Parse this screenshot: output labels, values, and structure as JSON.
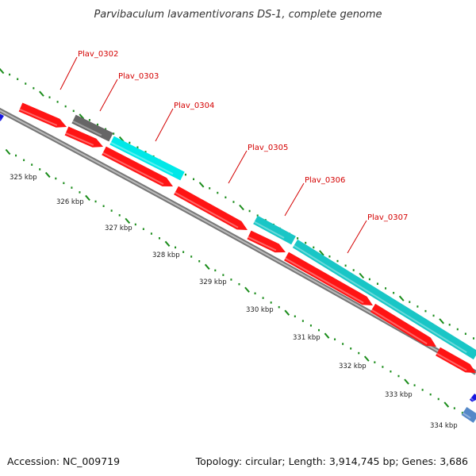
{
  "title": "Parvibaculum lavamentivorans DS-1, complete genome",
  "footer": {
    "accession": "Accession: NC_009719",
    "summary": "Topology: circular; Length: 3,914,745 bp; Genes: 3,686"
  },
  "colors": {
    "background": "#ffffff",
    "backbone": "#777777",
    "forward_gene_light": "#00e8e8",
    "forward_gene_teal": "#19c6c6",
    "reverse_gene_red": "#ff1414",
    "other_gene_gray": "#666666",
    "edge_gene_blue": "#1616e0",
    "edge_gene_steel": "#5588c8",
    "tick_green": "#1a8c1a",
    "label_red": "#d40000"
  },
  "kbp_scale": {
    "labels": [
      "325 kbp",
      "326 kbp",
      "327 kbp",
      "328 kbp",
      "329 kbp",
      "330 kbp",
      "331 kbp",
      "332 kbp",
      "333 kbp",
      "334 kbp"
    ]
  },
  "gene_labels": [
    "Plav_0302",
    "Plav_0303",
    "Plav_0304",
    "Plav_0305",
    "Plav_0306",
    "Plav_0307"
  ]
}
